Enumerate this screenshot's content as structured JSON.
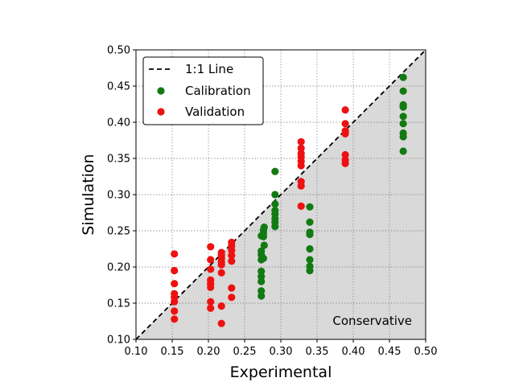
{
  "chart_data": {
    "type": "scatter",
    "xlabel": "Experimental",
    "ylabel": "Simulation",
    "xlim": [
      0.1,
      0.5
    ],
    "ylim": [
      0.1,
      0.5
    ],
    "xticks": [
      "0.10",
      "0.15",
      "0.20",
      "0.25",
      "0.30",
      "0.35",
      "0.40",
      "0.45",
      "0.50"
    ],
    "yticks": [
      "0.10",
      "0.15",
      "0.20",
      "0.25",
      "0.30",
      "0.35",
      "0.40",
      "0.45",
      "0.50"
    ],
    "grid": true,
    "legend_position": "top-left",
    "shaded_region": {
      "label": "Conservative",
      "color": "#d9d9d9"
    },
    "reference_line": {
      "name": "1:1 Line",
      "style": "dashed",
      "color": "#000000"
    },
    "series": [
      {
        "name": "Calibration",
        "color": "#127a12",
        "points": [
          [
            0.273,
            0.16
          ],
          [
            0.273,
            0.167
          ],
          [
            0.273,
            0.18
          ],
          [
            0.273,
            0.187
          ],
          [
            0.273,
            0.194
          ],
          [
            0.273,
            0.21
          ],
          [
            0.273,
            0.217
          ],
          [
            0.273,
            0.222
          ],
          [
            0.273,
            0.243
          ],
          [
            0.276,
            0.212
          ],
          [
            0.276,
            0.242
          ],
          [
            0.276,
            0.247
          ],
          [
            0.276,
            0.251
          ],
          [
            0.277,
            0.23
          ],
          [
            0.277,
            0.255
          ],
          [
            0.292,
            0.256
          ],
          [
            0.292,
            0.262
          ],
          [
            0.292,
            0.267
          ],
          [
            0.292,
            0.273
          ],
          [
            0.292,
            0.278
          ],
          [
            0.292,
            0.287
          ],
          [
            0.292,
            0.3
          ],
          [
            0.292,
            0.332
          ],
          [
            0.34,
            0.195
          ],
          [
            0.34,
            0.201
          ],
          [
            0.34,
            0.21
          ],
          [
            0.34,
            0.225
          ],
          [
            0.34,
            0.245
          ],
          [
            0.34,
            0.248
          ],
          [
            0.34,
            0.262
          ],
          [
            0.34,
            0.283
          ],
          [
            0.469,
            0.36
          ],
          [
            0.469,
            0.38
          ],
          [
            0.469,
            0.385
          ],
          [
            0.469,
            0.398
          ],
          [
            0.469,
            0.408
          ],
          [
            0.469,
            0.421
          ],
          [
            0.469,
            0.424
          ],
          [
            0.469,
            0.443
          ],
          [
            0.469,
            0.462
          ]
        ]
      },
      {
        "name": "Validation",
        "color": "#ee1111",
        "points": [
          [
            0.153,
            0.128
          ],
          [
            0.153,
            0.139
          ],
          [
            0.153,
            0.152
          ],
          [
            0.153,
            0.158
          ],
          [
            0.153,
            0.163
          ],
          [
            0.153,
            0.177
          ],
          [
            0.153,
            0.195
          ],
          [
            0.153,
            0.218
          ],
          [
            0.203,
            0.143
          ],
          [
            0.203,
            0.152
          ],
          [
            0.203,
            0.172
          ],
          [
            0.203,
            0.177
          ],
          [
            0.203,
            0.182
          ],
          [
            0.203,
            0.197
          ],
          [
            0.203,
            0.21
          ],
          [
            0.203,
            0.228
          ],
          [
            0.218,
            0.122
          ],
          [
            0.218,
            0.146
          ],
          [
            0.218,
            0.192
          ],
          [
            0.218,
            0.203
          ],
          [
            0.218,
            0.207
          ],
          [
            0.218,
            0.212
          ],
          [
            0.218,
            0.216
          ],
          [
            0.218,
            0.22
          ],
          [
            0.232,
            0.158
          ],
          [
            0.232,
            0.171
          ],
          [
            0.232,
            0.208
          ],
          [
            0.232,
            0.216
          ],
          [
            0.232,
            0.223
          ],
          [
            0.232,
            0.229
          ],
          [
            0.232,
            0.234
          ],
          [
            0.328,
            0.284
          ],
          [
            0.328,
            0.312
          ],
          [
            0.328,
            0.318
          ],
          [
            0.328,
            0.34
          ],
          [
            0.328,
            0.346
          ],
          [
            0.328,
            0.352
          ],
          [
            0.328,
            0.357
          ],
          [
            0.328,
            0.364
          ],
          [
            0.328,
            0.373
          ],
          [
            0.389,
            0.343
          ],
          [
            0.389,
            0.348
          ],
          [
            0.389,
            0.355
          ],
          [
            0.389,
            0.384
          ],
          [
            0.389,
            0.388
          ],
          [
            0.389,
            0.398
          ],
          [
            0.389,
            0.417
          ]
        ]
      }
    ]
  }
}
